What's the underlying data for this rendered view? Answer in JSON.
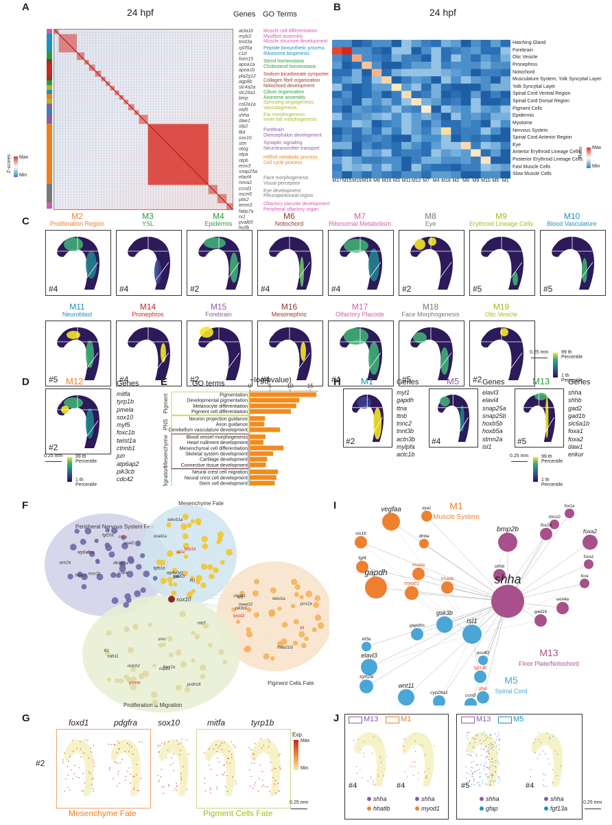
{
  "panelA": {
    "letter": "A",
    "title": "24 hpf",
    "col_genes": "Genes",
    "col_go": "GO Terms",
    "zscore_label": "Z-scores",
    "zscore_max": "Max",
    "zscore_min": "Min",
    "modules": [
      "M7",
      "M1",
      "M3",
      "M16",
      "M14",
      "M4",
      "M6",
      "M13",
      "M9",
      "M10",
      "M12",
      "M19",
      "M15",
      "M11",
      "M5",
      "M2",
      "M18",
      "M8",
      "M17"
    ],
    "genes": [
      "acta1b",
      "mylz2",
      "tnnt3a",
      "rpl35a",
      "c1d",
      "fsen15",
      "apoa1a",
      "apoa1b",
      "pla2g12",
      "aqp8b",
      "slc4a2a",
      "slc26a1",
      "bmp",
      "col2a1a",
      "ntd5",
      "shha",
      "daw1",
      "sfp2",
      "flt4",
      "sox10",
      "stm",
      "otog",
      "otpa",
      "otpb",
      "emx3",
      "snap25a",
      "elavl4",
      "nova2",
      "ccnd1",
      "mcm5",
      "pitx2",
      "tenm3",
      "fabp7a",
      "rx1",
      "pvalb5",
      "fezfb"
    ],
    "go_terms": [
      "Muscle cell differentiation",
      "Myofibril assembly",
      "Muscle structure development",
      "Peptide biosynthetic process",
      "Ribosome biogenesis",
      "Sterol homeostasis",
      "Cholesterol homeostasis",
      "Sodium:bicarbonate symporter",
      "Collagen fibril organization",
      "Notochord development",
      "Cilium organization",
      "Axoneme assembly",
      "Sprouting angiogenesis",
      "Vasculogenesis",
      "Ear morphogenesis",
      "Inner ear morphogenesis",
      "Forebrain",
      "Diencephalon development",
      "Synaptic signaling",
      "Neurotransmitter transport",
      "mRNA metabolic process",
      "Cell cycle process",
      "Face morphogenesis",
      "Visual perception",
      "Eye development",
      "Pleuroperitoneal region",
      "Olfactory placode development",
      "Peripheral olfactory organ"
    ]
  },
  "panelB": {
    "letter": "B",
    "title": "24 hpf",
    "ratio_label": "Ratio",
    "ratio_max": "Max",
    "ratio_min": "Min",
    "columns": [
      "M17",
      "M15",
      "M19",
      "M14",
      "M6",
      "M16",
      "M3",
      "M11",
      "M12",
      "M7",
      "M4",
      "M18",
      "M2",
      "M8",
      "M9",
      "M10",
      "M5",
      "M1"
    ],
    "rows": [
      "Hatching Gland",
      "Forebrain",
      "Otic Vesicle",
      "Pronephros",
      "Notochord",
      "Musculature System, Yolk Syncytial Layer",
      "Yolk Syncytial Layer",
      "Spinal Cord Ventral Region",
      "Spinal Cord Dorsal Region",
      "Pigment Cells",
      "Epidermis",
      "Myotome",
      "Nervous System",
      "Spinal Cord Anterior Region",
      "Eye",
      "Anterior Erythroid Lineage Cells",
      "Posterior Erythroid Lineage Cells",
      "Fast Muscle Cells",
      "Slow Muscle Cells"
    ]
  },
  "panelC": {
    "letter": "C",
    "tiles": [
      {
        "m": "M2",
        "sub": "Proliferation Region",
        "num": "#4",
        "color": "#f07c1c"
      },
      {
        "m": "M3",
        "sub": "YSL",
        "num": "#4",
        "color": "#2a9b3a"
      },
      {
        "m": "M4",
        "sub": "Epidermis",
        "num": "#2",
        "color": "#2a9b3a"
      },
      {
        "m": "M6",
        "sub": "Notochord",
        "num": "#4",
        "color": "#8b3a2a"
      },
      {
        "m": "M7",
        "sub": "Ribosomal Metabolism",
        "num": "#4",
        "color": "#d45ab0"
      },
      {
        "m": "M8",
        "sub": "Eye",
        "num": "#2",
        "color": "#777777"
      },
      {
        "m": "M9",
        "sub": "Erythroid Lineage Cells",
        "num": "#5",
        "color": "#a8b820"
      },
      {
        "m": "M10",
        "sub": "Blood Vasculature",
        "num": "#5",
        "color": "#1c8fc0"
      },
      {
        "m": "M11",
        "sub": "Neuroblast",
        "num": "#5",
        "color": "#1c8fc0"
      },
      {
        "m": "M14",
        "sub": "Pronephros",
        "num": "#4",
        "color": "#c8281e"
      },
      {
        "m": "M15",
        "sub": "Forebrain",
        "num": "#2",
        "color": "#8a5aa8"
      },
      {
        "m": "M16",
        "sub": "Mesonephric",
        "num": "#4",
        "color": "#8b3a2a"
      },
      {
        "m": "M17",
        "sub": "Olfactory Placode",
        "num": "#4",
        "color": "#d45ab0"
      },
      {
        "m": "M18",
        "sub": "Face Morphogenesis",
        "num": "#5",
        "color": "#777777"
      },
      {
        "m": "M19",
        "sub": "Otic Vesicle",
        "num": "#2",
        "color": "#a8b820"
      }
    ],
    "scale": "0.25 mm",
    "pct_top": "99 th Percentile",
    "pct_bottom": "1 th Percentile"
  },
  "panelD": {
    "letter": "D",
    "m": "M12",
    "num": "#2",
    "genes_title": "Genes",
    "genes": [
      "mitfa",
      "tyrp1b",
      "pmela",
      "sox10",
      "myf5",
      "foxc1b",
      "twist1a",
      "ctnnb1",
      "jun",
      "atp6ap2",
      "pik3cb",
      "cdc42"
    ],
    "scale": "0.25 mm",
    "pct_top": "99 th Percentile",
    "pct_bottom": "1 th Percentile"
  },
  "panelE": {
    "letter": "E",
    "go_title": "GO terms",
    "axis_title": "−log(pvalue)",
    "groups": [
      "Pigment",
      "PNS",
      "Mesenchyme",
      "Migration"
    ]
  },
  "chart_data": {
    "type": "bar",
    "orientation": "horizontal",
    "categories": [
      "Pigmentation",
      "Developmental pigmentation",
      "Melanocyte differentiation",
      "Pigment cell differentiation",
      "Neuron projection guidance",
      "Axon guidance",
      "Cerebellum vasculature development",
      "Blood vessel morphogenesis",
      "Heart rudiment development",
      "Mesenchymal cell differentiation",
      "Skeletal system development",
      "Cartilage development",
      "Connective tissue development",
      "Neural crest cell migration",
      "Neural crest cell development",
      "Stem cell development"
    ],
    "values": [
      16.5,
      12.3,
      11.5,
      10.2,
      3.8,
      3.6,
      7.5,
      3.9,
      3.4,
      8.4,
      5.8,
      4.3,
      4.0,
      7.0,
      6.6,
      6.2
    ],
    "xlabel": "−log(pvalue)",
    "xticks": [
      0,
      5,
      10,
      15
    ],
    "xlim": [
      0,
      17
    ],
    "color": "#f28c1e"
  },
  "panelF": {
    "letter": "F",
    "groups": [
      "Peripheral Nervous System Fate",
      "Mesenchyme Fate",
      "Pigment Cells Fate",
      "Proliferation & Migration"
    ],
    "hub": "sox10",
    "labels": [
      "mitfa",
      "tyrp1a",
      "tyrp1b",
      "pmela",
      "dct",
      "id2a",
      "kit",
      "notch2",
      "dtnbp1a",
      "atp6v0d1",
      "pik3cb",
      "copb1",
      "actr2a",
      "cdc42l",
      "tmed10",
      "rab7",
      "copa",
      "gak",
      "twist1a",
      "foxc1a",
      "snail2",
      "snail1a",
      "prrx1a",
      "fli1",
      "atp6v0ca",
      "ednrb1a",
      "ctnnb1",
      "pcdh18",
      "fgf20a",
      "tgfb1a",
      "id3",
      "cdh11",
      "msx1b",
      "flt1",
      "mab21l2",
      "smo",
      "hdac1"
    ]
  },
  "panelG": {
    "letter": "G",
    "num": "#2",
    "genes": [
      "foxd1",
      "pdgfra",
      "sox10",
      "mitfa",
      "tyrp1b"
    ],
    "box1": "Mesenchyme Fate",
    "box2": "Pigment Cells Fate",
    "exp_label": "Exp.",
    "exp_max": "Max",
    "exp_min": "Min",
    "scale": "0.25 mm"
  },
  "panelH": {
    "letter": "H",
    "items": [
      {
        "m": "M1",
        "num": "#2",
        "color": "#1c8fc0",
        "genes": [
          "myl1",
          "gapdh",
          "ttna",
          "ttnb",
          "tnnc2",
          "tnnt3b",
          "actn3b",
          "mylpfa",
          "actc1b"
        ]
      },
      {
        "m": "M5",
        "num": "#4",
        "color": "#8a5aa8",
        "genes": [
          "elavl3",
          "elavl4",
          "snap25a",
          "snap25b",
          "hoxb5b",
          "hoxb5a",
          "stmn2a",
          "isl1"
        ]
      },
      {
        "m": "M13",
        "num": "#5",
        "color": "#2a9b3a",
        "genes": [
          "shha",
          "shhb",
          "gad2",
          "gad1b",
          "slc6a1b",
          "foxa1",
          "foxa2",
          "daw1",
          "enkur"
        ]
      }
    ],
    "genes_title": "Genes",
    "scale": "0.25 mm",
    "pct_top": "99 th Percentile",
    "pct_bottom": "1 th Percentile"
  },
  "panelI": {
    "letter": "I",
    "m1": "M1",
    "m1_sub": "Muscle System",
    "m13": "M13",
    "m13_sub": "Floor Plate/Notochord",
    "m5": "M5",
    "m5_sub": "Spinal Cord",
    "nodes": [
      "vegfaa",
      "eya1",
      "six1b",
      "dtnba",
      "fgf4",
      "hhatla",
      "bmp2b",
      "gapdh",
      "hhatlb",
      "shhb",
      "myod1",
      "shha",
      "gsk3b",
      "isl1",
      "gapdhs",
      "kif3a",
      "elavl3",
      "pou4f2",
      "fgf13b",
      "syn2a",
      "gfap",
      "wnt11",
      "cyp26a1",
      "ccnl2",
      "rbm10",
      "foxa2",
      "fox2a",
      "foxa1",
      "foxa",
      "wnt4a",
      "gad1b",
      "fox1a"
    ]
  },
  "panelJ": {
    "letter": "J",
    "box1_a": "M13",
    "box1_b": "M1",
    "box2_a": "M13",
    "box2_b": "M5",
    "panels": [
      {
        "num": "#4",
        "g1": "shha",
        "g2": "hhatlb"
      },
      {
        "num": "#4",
        "g1": "shha",
        "g2": "myod1"
      },
      {
        "num": "#5",
        "g1": "shha",
        "g2": "gfap"
      },
      {
        "num": "#4",
        "g1": "shha",
        "g2": "fgf13a"
      }
    ],
    "scale": "0.25 mm"
  }
}
